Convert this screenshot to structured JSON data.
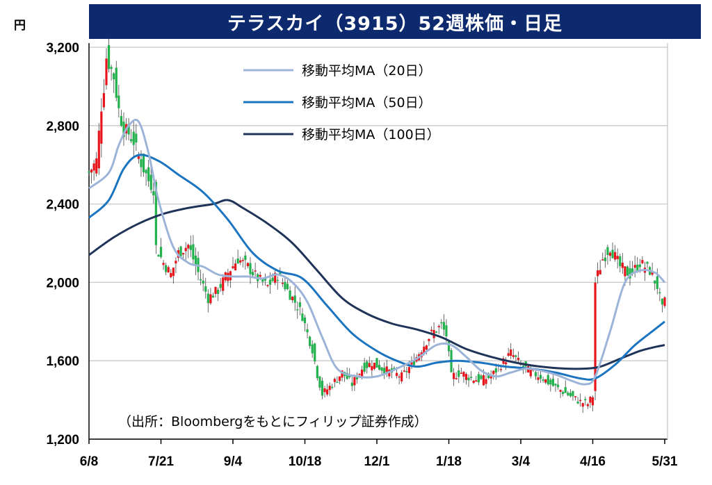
{
  "header": {
    "title": "テラスカイ（3915）52週株価・日足",
    "unit": "円"
  },
  "colors": {
    "title_bg": "#0d2a6e",
    "up": "#e8141b",
    "down": "#22b14c",
    "ma20": "#9cb4d8",
    "ma50": "#1a74c0",
    "ma100": "#1f3458",
    "grid": "#c8c8c8"
  },
  "chart_data": {
    "type": "candlestick",
    "ylim": [
      1200,
      3200
    ],
    "y_ticks": [
      "1,200",
      "1,600",
      "2,000",
      "2,400",
      "2,800",
      "3,200"
    ],
    "y_tick_values": [
      1200,
      1600,
      2000,
      2400,
      2800,
      3200
    ],
    "x_tick_labels": [
      "6/8",
      "7/21",
      "9/4",
      "10/18",
      "12/1",
      "1/18",
      "3/4",
      "4/16",
      "5/31"
    ],
    "x_tick_index": [
      0,
      29,
      58,
      87,
      116,
      145,
      174,
      203,
      232
    ],
    "n_days": 233,
    "legend": [
      {
        "key": "ma20",
        "label": "移動平均MA（20日）"
      },
      {
        "key": "ma50",
        "label": "移動平均MA（50日）"
      },
      {
        "key": "ma100",
        "label": "移動平均MA（100日）"
      }
    ],
    "source_note": "（出所：Bloombergをもとにフィリップ証券作成）",
    "close_anchors": [
      [
        0,
        2560
      ],
      [
        3,
        2620
      ],
      [
        5,
        2900
      ],
      [
        6,
        3000
      ],
      [
        7,
        3150
      ],
      [
        8,
        3120
      ],
      [
        10,
        3050
      ],
      [
        12,
        2880
      ],
      [
        14,
        2780
      ],
      [
        16,
        2760
      ],
      [
        18,
        2720
      ],
      [
        20,
        2640
      ],
      [
        24,
        2520
      ],
      [
        26,
        2480
      ],
      [
        27,
        2180
      ],
      [
        30,
        2100
      ],
      [
        33,
        2040
      ],
      [
        36,
        2150
      ],
      [
        40,
        2190
      ],
      [
        44,
        2050
      ],
      [
        48,
        1920
      ],
      [
        52,
        1960
      ],
      [
        56,
        2050
      ],
      [
        60,
        2120
      ],
      [
        64,
        2080
      ],
      [
        68,
        2020
      ],
      [
        72,
        1980
      ],
      [
        76,
        2040
      ],
      [
        80,
        1960
      ],
      [
        84,
        1880
      ],
      [
        86,
        1830
      ],
      [
        88,
        1740
      ],
      [
        90,
        1660
      ],
      [
        92,
        1530
      ],
      [
        94,
        1430
      ],
      [
        98,
        1480
      ],
      [
        102,
        1540
      ],
      [
        106,
        1480
      ],
      [
        110,
        1560
      ],
      [
        114,
        1590
      ],
      [
        118,
        1560
      ],
      [
        122,
        1540
      ],
      [
        126,
        1520
      ],
      [
        130,
        1580
      ],
      [
        134,
        1660
      ],
      [
        138,
        1740
      ],
      [
        142,
        1780
      ],
      [
        144,
        1730
      ],
      [
        146,
        1520
      ],
      [
        150,
        1540
      ],
      [
        154,
        1510
      ],
      [
        158,
        1500
      ],
      [
        162,
        1520
      ],
      [
        166,
        1580
      ],
      [
        170,
        1640
      ],
      [
        174,
        1580
      ],
      [
        178,
        1540
      ],
      [
        182,
        1520
      ],
      [
        186,
        1480
      ],
      [
        190,
        1450
      ],
      [
        194,
        1420
      ],
      [
        198,
        1390
      ],
      [
        201,
        1380
      ],
      [
        203,
        1420
      ],
      [
        204,
        2000
      ],
      [
        207,
        2120
      ],
      [
        210,
        2180
      ],
      [
        214,
        2080
      ],
      [
        218,
        2040
      ],
      [
        222,
        2100
      ],
      [
        226,
        2060
      ],
      [
        229,
        1980
      ],
      [
        231,
        1860
      ],
      [
        232,
        1900
      ]
    ],
    "ma20_points": [
      [
        0,
        2480
      ],
      [
        8,
        2560
      ],
      [
        12,
        2700
      ],
      [
        16,
        2800
      ],
      [
        20,
        2820
      ],
      [
        24,
        2660
      ],
      [
        28,
        2420
      ],
      [
        34,
        2180
      ],
      [
        40,
        2100
      ],
      [
        46,
        2080
      ],
      [
        52,
        2040
      ],
      [
        58,
        2030
      ],
      [
        64,
        2030
      ],
      [
        70,
        2020
      ],
      [
        76,
        2040
      ],
      [
        82,
        2000
      ],
      [
        88,
        1900
      ],
      [
        94,
        1720
      ],
      [
        100,
        1560
      ],
      [
        108,
        1520
      ],
      [
        116,
        1520
      ],
      [
        124,
        1560
      ],
      [
        132,
        1610
      ],
      [
        140,
        1680
      ],
      [
        146,
        1680
      ],
      [
        152,
        1620
      ],
      [
        158,
        1550
      ],
      [
        164,
        1520
      ],
      [
        170,
        1540
      ],
      [
        176,
        1560
      ],
      [
        182,
        1550
      ],
      [
        188,
        1530
      ],
      [
        194,
        1500
      ],
      [
        200,
        1480
      ],
      [
        204,
        1520
      ],
      [
        210,
        1750
      ],
      [
        216,
        2000
      ],
      [
        222,
        2060
      ],
      [
        228,
        2050
      ],
      [
        232,
        2000
      ]
    ],
    "ma50_points": [
      [
        0,
        2330
      ],
      [
        8,
        2420
      ],
      [
        14,
        2580
      ],
      [
        20,
        2650
      ],
      [
        28,
        2620
      ],
      [
        36,
        2550
      ],
      [
        46,
        2460
      ],
      [
        56,
        2320
      ],
      [
        66,
        2150
      ],
      [
        76,
        2060
      ],
      [
        86,
        2020
      ],
      [
        96,
        1880
      ],
      [
        106,
        1740
      ],
      [
        116,
        1650
      ],
      [
        124,
        1600
      ],
      [
        132,
        1570
      ],
      [
        140,
        1590
      ],
      [
        148,
        1600
      ],
      [
        158,
        1590
      ],
      [
        168,
        1570
      ],
      [
        178,
        1560
      ],
      [
        188,
        1540
      ],
      [
        198,
        1510
      ],
      [
        204,
        1510
      ],
      [
        212,
        1580
      ],
      [
        220,
        1680
      ],
      [
        228,
        1760
      ],
      [
        232,
        1800
      ]
    ],
    "ma100_points": [
      [
        0,
        2140
      ],
      [
        10,
        2230
      ],
      [
        20,
        2300
      ],
      [
        30,
        2350
      ],
      [
        40,
        2380
      ],
      [
        50,
        2400
      ],
      [
        56,
        2420
      ],
      [
        62,
        2380
      ],
      [
        72,
        2300
      ],
      [
        82,
        2200
      ],
      [
        92,
        2060
      ],
      [
        102,
        1920
      ],
      [
        112,
        1840
      ],
      [
        122,
        1790
      ],
      [
        132,
        1760
      ],
      [
        142,
        1720
      ],
      [
        152,
        1660
      ],
      [
        162,
        1620
      ],
      [
        172,
        1590
      ],
      [
        182,
        1570
      ],
      [
        192,
        1560
      ],
      [
        200,
        1560
      ],
      [
        206,
        1570
      ],
      [
        214,
        1610
      ],
      [
        222,
        1650
      ],
      [
        228,
        1670
      ],
      [
        232,
        1680
      ]
    ]
  }
}
